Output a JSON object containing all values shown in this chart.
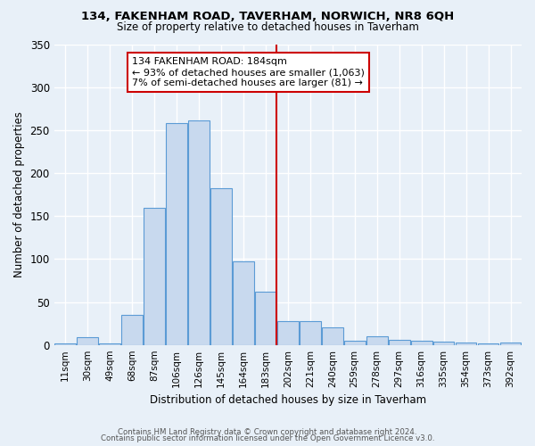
{
  "title1": "134, FAKENHAM ROAD, TAVERHAM, NORWICH, NR8 6QH",
  "title2": "Size of property relative to detached houses in Taverham",
  "xlabel": "Distribution of detached houses by size in Taverham",
  "ylabel": "Number of detached properties",
  "categories": [
    "11sqm",
    "30sqm",
    "49sqm",
    "68sqm",
    "87sqm",
    "106sqm",
    "126sqm",
    "145sqm",
    "164sqm",
    "183sqm",
    "202sqm",
    "221sqm",
    "240sqm",
    "259sqm",
    "278sqm",
    "297sqm",
    "316sqm",
    "335sqm",
    "354sqm",
    "373sqm",
    "392sqm"
  ],
  "values": [
    2,
    9,
    2,
    35,
    160,
    258,
    262,
    183,
    97,
    62,
    28,
    28,
    20,
    5,
    10,
    6,
    5,
    4,
    3,
    2,
    3
  ],
  "bar_color": "#c8d9ee",
  "bar_edge_color": "#5b9bd5",
  "vline_color": "#cc0000",
  "annotation_text": "134 FAKENHAM ROAD: 184sqm\n← 93% of detached houses are smaller (1,063)\n7% of semi-detached houses are larger (81) →",
  "annotation_box_color": "#cc0000",
  "background_color": "#e8f0f8",
  "grid_color": "#ffffff",
  "ylim": [
    0,
    350
  ],
  "footer1": "Contains HM Land Registry data © Crown copyright and database right 2024.",
  "footer2": "Contains public sector information licensed under the Open Government Licence v3.0."
}
